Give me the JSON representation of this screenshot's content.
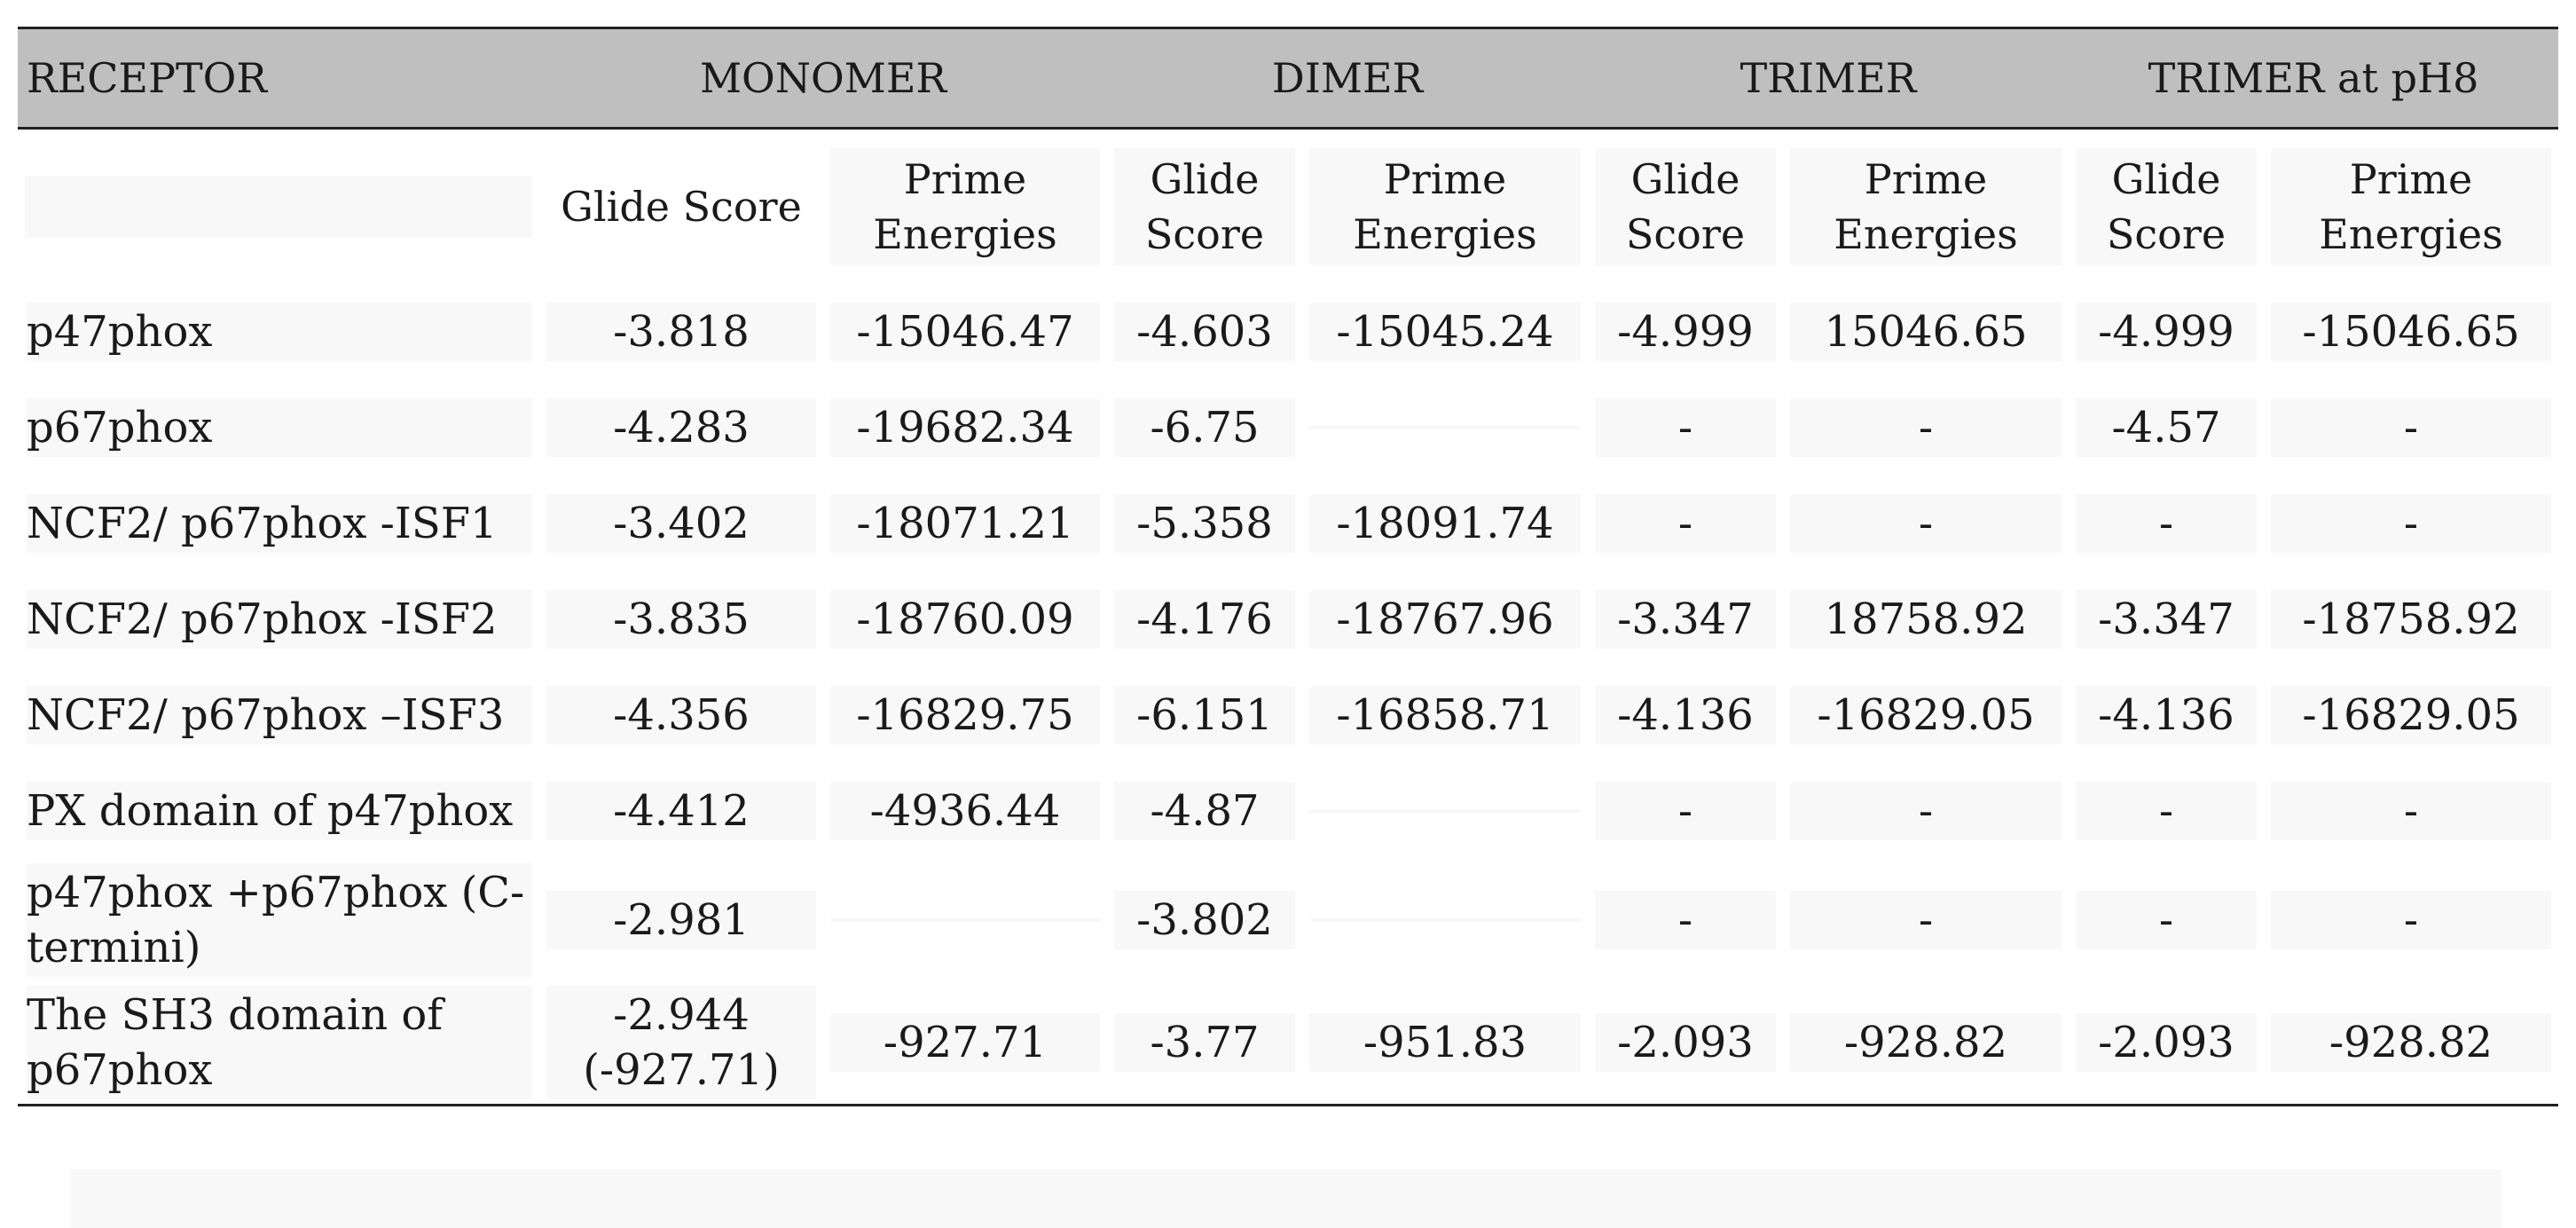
{
  "header": {
    "receptor": "RECEPTOR",
    "groups": [
      "MONOMER",
      "DIMER",
      "TRIMER",
      "TRIMER at pH8"
    ],
    "sub_columns": [
      "Glide Score",
      "Prime Energies",
      "Glide Score",
      "Prime Energies",
      "Glide Score",
      "Prime Energies",
      "Glide Score",
      "Prime Energies"
    ]
  },
  "rows": [
    {
      "receptor": "p47phox",
      "values": [
        "-3.818",
        "-15046.47",
        "-4.603",
        "-15045.24",
        "-4.999",
        "15046.65",
        "-4.999",
        "-15046.65"
      ]
    },
    {
      "receptor": "p67phox",
      "values": [
        "-4.283",
        "-19682.34",
        "-6.75",
        "",
        "-",
        "-",
        "-4.57",
        "-"
      ]
    },
    {
      "receptor": "NCF2/ p67phox -ISF1",
      "values": [
        "-3.402",
        "-18071.21",
        "-5.358",
        "-18091.74",
        "-",
        "-",
        "-",
        "-"
      ]
    },
    {
      "receptor": "NCF2/ p67phox -ISF2",
      "values": [
        "-3.835",
        "-18760.09",
        "-4.176",
        "-18767.96",
        "-3.347",
        "18758.92",
        "-3.347",
        "-18758.92"
      ]
    },
    {
      "receptor": "NCF2/ p67phox –ISF3",
      "values": [
        "-4.356",
        "-16829.75",
        "-6.151",
        "-16858.71",
        "-4.136",
        "-16829.05",
        "-4.136",
        "-16829.05"
      ]
    },
    {
      "receptor": "PX domain of p47phox",
      "values": [
        "-4.412",
        "-4936.44",
        "-4.87",
        "",
        "-",
        "-",
        "-",
        "-"
      ]
    },
    {
      "receptor": "p47phox +p67phox (C-termini)",
      "values": [
        "-2.981",
        "",
        "-3.802",
        "",
        "-",
        "-",
        "-",
        "-"
      ]
    },
    {
      "receptor": "The SH3 domain of p67phox",
      "values": [
        "-2.944 (-927.71)",
        "-927.71",
        "-3.77",
        "-951.83",
        "-2.093",
        "-928.82",
        "-2.093",
        "-928.82"
      ]
    }
  ]
}
